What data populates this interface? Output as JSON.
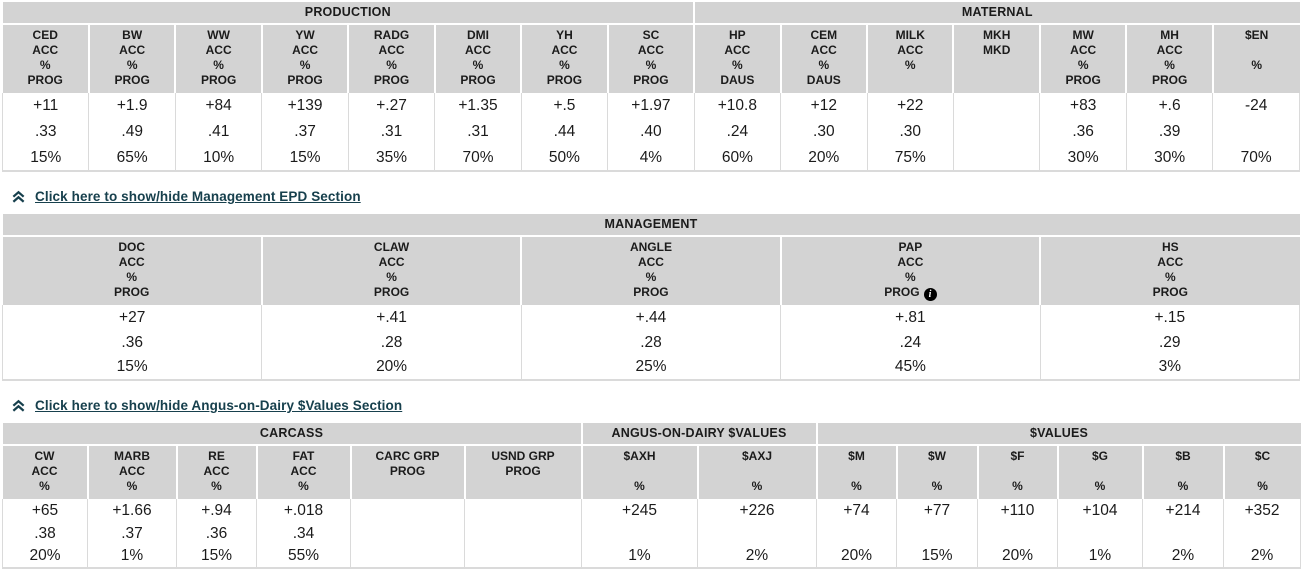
{
  "colors": {
    "header_bg": "#d3d3d3",
    "link": "#17404d",
    "cell_border": "#dadada",
    "text": "#1b1b1b"
  },
  "toggles": [
    {
      "label": "Click here to show/hide Management EPD Section",
      "icon": "double-chevron-up"
    },
    {
      "label": "Click here to show/hide Angus-on-Dairy $Values Section",
      "icon": "double-chevron-up"
    }
  ],
  "row_kinds": [
    "value",
    "accuracy",
    "percentile"
  ],
  "tables": {
    "epd": {
      "groups": [
        {
          "label": "PRODUCTION",
          "span": 8
        },
        {
          "label": "MATERNAL",
          "span": 7
        }
      ],
      "columns": [
        {
          "id": "ced",
          "header": [
            "CED",
            "ACC",
            "%",
            "PROG"
          ],
          "values": [
            "+11",
            ".33",
            "15%"
          ]
        },
        {
          "id": "bw",
          "header": [
            "BW",
            "ACC",
            "%",
            "PROG"
          ],
          "values": [
            "+1.9",
            ".49",
            "65%"
          ]
        },
        {
          "id": "ww",
          "header": [
            "WW",
            "ACC",
            "%",
            "PROG"
          ],
          "values": [
            "+84",
            ".41",
            "10%"
          ]
        },
        {
          "id": "yw",
          "header": [
            "YW",
            "ACC",
            "%",
            "PROG"
          ],
          "values": [
            "+139",
            ".37",
            "15%"
          ]
        },
        {
          "id": "radg",
          "header": [
            "RADG",
            "ACC",
            "%",
            "PROG"
          ],
          "values": [
            "+.27",
            ".31",
            "35%"
          ]
        },
        {
          "id": "dmi",
          "header": [
            "DMI",
            "ACC",
            "%",
            "PROG"
          ],
          "values": [
            "+1.35",
            ".31",
            "70%"
          ]
        },
        {
          "id": "yh",
          "header": [
            "YH",
            "ACC",
            "%",
            "PROG"
          ],
          "values": [
            "+.5",
            ".44",
            "50%"
          ]
        },
        {
          "id": "sc",
          "header": [
            "SC",
            "ACC",
            "%",
            "PROG"
          ],
          "values": [
            "+1.97",
            ".40",
            "4%"
          ]
        },
        {
          "id": "hp",
          "header": [
            "HP",
            "ACC",
            "%",
            "DAUS"
          ],
          "values": [
            "+10.8",
            ".24",
            "60%"
          ]
        },
        {
          "id": "cem",
          "header": [
            "CEM",
            "ACC",
            "%",
            "DAUS"
          ],
          "values": [
            "+12",
            ".30",
            "20%"
          ]
        },
        {
          "id": "milk",
          "header": [
            "MILK",
            "ACC",
            "%",
            ""
          ],
          "values": [
            "+22",
            ".30",
            "75%"
          ]
        },
        {
          "id": "mkh",
          "header": [
            "MKH",
            "MKD",
            "",
            ""
          ],
          "values": [
            "",
            "",
            ""
          ]
        },
        {
          "id": "mw",
          "header": [
            "MW",
            "ACC",
            "%",
            "PROG"
          ],
          "values": [
            "+83",
            ".36",
            "30%"
          ]
        },
        {
          "id": "mh",
          "header": [
            "MH",
            "ACC",
            "%",
            "PROG"
          ],
          "values": [
            "+.6",
            ".39",
            "30%"
          ]
        },
        {
          "id": "en",
          "header": [
            "$EN",
            "",
            "%",
            ""
          ],
          "values": [
            "-24",
            "",
            "70%"
          ]
        }
      ]
    },
    "management": {
      "groups": [
        {
          "label": "MANAGEMENT",
          "span": 5
        }
      ],
      "columns": [
        {
          "id": "doc",
          "header": [
            "DOC",
            "ACC",
            "%",
            "PROG"
          ],
          "values": [
            "+27",
            ".36",
            "15%"
          ]
        },
        {
          "id": "claw",
          "header": [
            "CLAW",
            "ACC",
            "%",
            "PROG"
          ],
          "values": [
            "+.41",
            ".28",
            "20%"
          ]
        },
        {
          "id": "angle",
          "header": [
            "ANGLE",
            "ACC",
            "%",
            "PROG"
          ],
          "values": [
            "+.44",
            ".28",
            "25%"
          ]
        },
        {
          "id": "pap",
          "header": [
            "PAP",
            "ACC",
            "%",
            "PROG"
          ],
          "info_icon": true,
          "values": [
            "+.81",
            ".24",
            "45%"
          ]
        },
        {
          "id": "hs",
          "header": [
            "HS",
            "ACC",
            "%",
            "PROG"
          ],
          "values": [
            "+.15",
            ".29",
            "3%"
          ]
        }
      ]
    },
    "carcass": {
      "groups": [
        {
          "label": "CARCASS",
          "span": 6
        },
        {
          "label": "ANGUS-ON-DAIRY $VALUES",
          "span": 2
        },
        {
          "label": "$VALUES",
          "span": 6
        }
      ],
      "columns": [
        {
          "id": "cw",
          "header": [
            "CW",
            "ACC",
            "%"
          ],
          "values": [
            "+65",
            ".38",
            "20%"
          ]
        },
        {
          "id": "marb",
          "header": [
            "MARB",
            "ACC",
            "%"
          ],
          "values": [
            "+1.66",
            ".37",
            "1%"
          ]
        },
        {
          "id": "re",
          "header": [
            "RE",
            "ACC",
            "%"
          ],
          "values": [
            "+.94",
            ".36",
            "15%"
          ]
        },
        {
          "id": "fat",
          "header": [
            "FAT",
            "ACC",
            "%"
          ],
          "values": [
            "+.018",
            ".34",
            "55%"
          ]
        },
        {
          "id": "carc-grp",
          "header": [
            "CARC GRP",
            "PROG",
            ""
          ],
          "values": [
            "",
            "",
            ""
          ]
        },
        {
          "id": "usnd-grp",
          "header": [
            "USND GRP",
            "PROG",
            ""
          ],
          "values": [
            "",
            "",
            ""
          ]
        },
        {
          "id": "axh",
          "header": [
            "$AXH",
            "",
            "%"
          ],
          "values": [
            "+245",
            "",
            "1%"
          ]
        },
        {
          "id": "axj",
          "header": [
            "$AXJ",
            "",
            "%"
          ],
          "values": [
            "+226",
            "",
            "2%"
          ]
        },
        {
          "id": "m",
          "header": [
            "$M",
            "",
            "%"
          ],
          "values": [
            "+74",
            "",
            "20%"
          ]
        },
        {
          "id": "w",
          "header": [
            "$W",
            "",
            "%"
          ],
          "values": [
            "+77",
            "",
            "15%"
          ]
        },
        {
          "id": "f",
          "header": [
            "$F",
            "",
            "%"
          ],
          "values": [
            "+110",
            "",
            "20%"
          ]
        },
        {
          "id": "g",
          "header": [
            "$G",
            "",
            "%"
          ],
          "values": [
            "+104",
            "",
            "1%"
          ]
        },
        {
          "id": "b",
          "header": [
            "$B",
            "",
            "%"
          ],
          "values": [
            "+214",
            "",
            "2%"
          ]
        },
        {
          "id": "c",
          "header": [
            "$C",
            "",
            "%"
          ],
          "values": [
            "+352",
            "",
            "2%"
          ]
        }
      ]
    }
  }
}
